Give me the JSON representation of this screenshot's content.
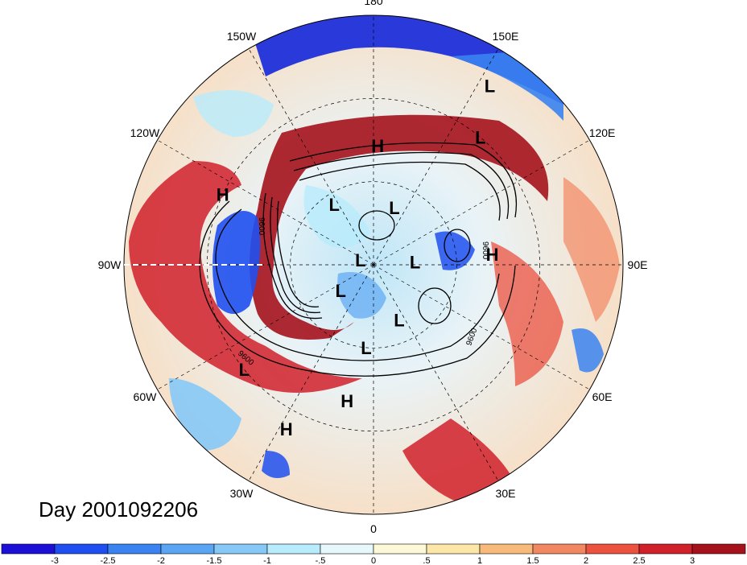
{
  "title": "Day 2001092206",
  "longitude_labels": [
    {
      "text": "90E",
      "lon": 90
    },
    {
      "text": "60E",
      "lon": 60
    },
    {
      "text": "30E",
      "lon": 30
    },
    {
      "text": "0",
      "lon": 0
    },
    {
      "text": "30W",
      "lon": -30
    },
    {
      "text": "60W",
      "lon": -60
    },
    {
      "text": "90W",
      "lon": -90
    },
    {
      "text": "120W",
      "lon": -120
    },
    {
      "text": "150W",
      "lon": -150
    },
    {
      "text": "180",
      "lon": 180
    },
    {
      "text": "150E",
      "lon": 150
    },
    {
      "text": "120E",
      "lon": 120
    }
  ],
  "pressure_centers": [
    {
      "text": "H",
      "lon": 95,
      "lat": 47
    },
    {
      "text": "L",
      "lon": 147,
      "lat": 13
    },
    {
      "text": "L",
      "lon": 140,
      "lat": 30
    },
    {
      "text": "H",
      "lon": 178,
      "lat": 47
    },
    {
      "text": "L",
      "lon": 160,
      "lat": 68
    },
    {
      "text": "L",
      "lon": 94,
      "lat": 75
    },
    {
      "text": "L",
      "lon": 25,
      "lat": 68
    },
    {
      "text": "L",
      "lon": -5,
      "lat": 60
    },
    {
      "text": "H",
      "lon": -11,
      "lat": 40
    },
    {
      "text": "H",
      "lon": -28,
      "lat": 23
    },
    {
      "text": "L",
      "lon": -147,
      "lat": 64
    },
    {
      "text": "L",
      "lon": -110,
      "lat": 85
    },
    {
      "text": "L",
      "lon": -52,
      "lat": 75
    },
    {
      "text": "L",
      "lon": -51,
      "lat": 30
    },
    {
      "text": "H",
      "lon": -115,
      "lat": 30
    }
  ],
  "contour_label": "9600",
  "colorbar": {
    "colors": [
      "#1c0fd6",
      "#1f4ff0",
      "#3a83f0",
      "#5ba6f4",
      "#86c9f7",
      "#b8ebfb",
      "#e6f8fc",
      "#fdf8d8",
      "#fce7a8",
      "#f7ba7b",
      "#f28862",
      "#eb5240",
      "#d0202a",
      "#a5121c"
    ],
    "ticks": [
      "-3",
      "-2.5",
      "-2",
      "-1.5",
      "-1",
      "-.5",
      "0",
      ".5",
      "1",
      "1.5",
      "2",
      "2.5",
      "3"
    ]
  }
}
